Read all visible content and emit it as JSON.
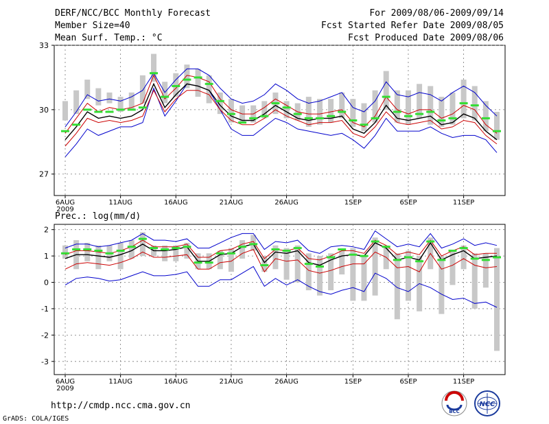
{
  "header": {
    "title": "DERF/NCC/BCC Monthly Forecast",
    "member_size": "Member Size=40",
    "variable": "Mean Surf. Temp.: °C",
    "forecast_period": "For 2009/08/06-2009/09/14",
    "fcst_started": "Fcst Started Refer Date 2009/08/05",
    "fcst_produced": "Fcst Produced Date 2009/08/06"
  },
  "footer": {
    "url": "http://cmdp.ncc.cma.gov.cn",
    "grads": "GrADS: COLA/IGES",
    "logo_bcc": "BCC",
    "logo_ncc": "NCC"
  },
  "colors": {
    "envelope": "#0000cc",
    "spread": "#cc0000",
    "mean": "#000000",
    "bar": "#c8c8c8",
    "climatology": "#33dd33"
  },
  "chart_data": [
    {
      "type": "line",
      "title": "Mean Surf. Temp.: °C",
      "x_tick_labels": [
        "6AUG",
        "11AUG",
        "16AUG",
        "21AUG",
        "26AUG",
        "1SEP",
        "6SEP",
        "11SEP"
      ],
      "x_tick_days": [
        1,
        6,
        11,
        16,
        21,
        27,
        32,
        37
      ],
      "year_label": "2009",
      "days": 40,
      "ylim": [
        26,
        33
      ],
      "y_ticks": [
        27,
        30,
        33
      ],
      "series": [
        {
          "name": "ensemble max",
          "values": [
            27.8,
            28.4,
            29.1,
            28.8,
            29.0,
            29.2,
            29.2,
            29.4,
            31.0,
            29.7,
            30.4,
            31.2,
            31.1,
            30.9,
            30.0,
            29.1,
            28.8,
            28.8,
            29.2,
            29.6,
            29.4,
            29.1,
            29.0,
            28.9,
            28.8,
            28.9,
            28.6,
            28.2,
            28.8,
            29.6,
            29.0,
            29.0,
            29.0,
            29.2,
            28.9,
            28.7,
            28.8,
            28.8,
            28.6,
            28.0
          ]
        },
        {
          "name": "ensemble upper",
          "values": [
            28.9,
            29.6,
            30.3,
            29.9,
            30.1,
            30.0,
            30.1,
            30.3,
            31.6,
            30.5,
            31.0,
            31.6,
            31.5,
            31.3,
            30.5,
            30.0,
            29.8,
            29.8,
            30.1,
            30.5,
            30.2,
            29.9,
            29.8,
            29.8,
            29.9,
            30.0,
            29.4,
            29.2,
            29.7,
            30.6,
            30.0,
            29.8,
            30.0,
            30.0,
            29.6,
            29.8,
            30.2,
            30.0,
            29.3,
            28.9
          ]
        },
        {
          "name": "ensemble mean",
          "values": [
            28.6,
            29.2,
            29.9,
            29.6,
            29.7,
            29.6,
            29.7,
            30.0,
            31.2,
            30.1,
            30.7,
            31.2,
            31.1,
            30.9,
            30.2,
            29.7,
            29.5,
            29.5,
            29.8,
            30.2,
            29.9,
            29.6,
            29.5,
            29.6,
            29.6,
            29.7,
            29.1,
            28.9,
            29.4,
            30.2,
            29.6,
            29.5,
            29.6,
            29.7,
            29.3,
            29.4,
            29.8,
            29.6,
            29.0,
            28.6
          ]
        },
        {
          "name": "ensemble lower",
          "values": [
            28.3,
            28.9,
            29.6,
            29.4,
            29.5,
            29.4,
            29.5,
            29.7,
            30.9,
            29.9,
            30.5,
            30.9,
            30.9,
            30.7,
            30.0,
            29.5,
            29.3,
            29.3,
            29.6,
            30.0,
            29.7,
            29.5,
            29.3,
            29.4,
            29.4,
            29.5,
            28.9,
            28.7,
            29.2,
            29.9,
            29.4,
            29.3,
            29.4,
            29.5,
            29.1,
            29.2,
            29.5,
            29.4,
            28.8,
            28.4
          ]
        },
        {
          "name": "ensemble min",
          "values": [
            29.2,
            29.9,
            30.7,
            30.4,
            30.5,
            30.4,
            30.6,
            30.9,
            31.7,
            30.8,
            31.4,
            31.9,
            31.9,
            31.6,
            31.0,
            30.5,
            30.3,
            30.4,
            30.7,
            31.2,
            30.9,
            30.5,
            30.3,
            30.4,
            30.6,
            30.8,
            30.1,
            29.9,
            30.4,
            31.3,
            30.7,
            30.6,
            30.8,
            30.7,
            30.4,
            30.8,
            31.1,
            30.8,
            30.2,
            29.7
          ]
        }
      ],
      "anomaly_bar_top": [
        30.4,
        30.9,
        31.4,
        31.0,
        30.8,
        30.6,
        30.8,
        31.6,
        32.6,
        31.3,
        31.7,
        32.1,
        31.9,
        31.6,
        30.8,
        30.5,
        30.2,
        30.2,
        30.4,
        30.8,
        30.4,
        30.3,
        30.6,
        30.5,
        30.5,
        30.8,
        30.5,
        30.3,
        30.9,
        31.8,
        30.9,
        30.9,
        31.2,
        31.1,
        30.6,
        30.8,
        31.4,
        31.1,
        30.4,
        29.9
      ],
      "anomaly_bar_bottom": [
        29.5,
        29.8,
        30.5,
        30.2,
        30.3,
        29.9,
        30.0,
        30.3,
        31.3,
        30.3,
        30.6,
        31.0,
        30.6,
        30.3,
        29.8,
        29.4,
        29.4,
        29.4,
        29.6,
        29.8,
        29.6,
        29.5,
        29.2,
        29.3,
        29.4,
        29.6,
        29.2,
        29.0,
        29.4,
        30.0,
        29.4,
        29.3,
        29.6,
        29.3,
        29.2,
        29.3,
        29.6,
        29.5,
        29.0,
        28.6
      ],
      "climatology_mark": [
        29.0,
        29.3,
        30.0,
        29.9,
        29.9,
        30.0,
        30.0,
        30.1,
        31.7,
        30.6,
        31.1,
        31.4,
        31.5,
        31.2,
        30.4,
        29.8,
        29.4,
        29.6,
        29.7,
        30.3,
        30.1,
        29.8,
        29.6,
        29.6,
        29.7,
        29.9,
        29.5,
        29.3,
        29.6,
        30.6,
        29.9,
        29.7,
        29.8,
        29.9,
        29.5,
        29.6,
        30.3,
        30.2,
        29.6,
        29.0
      ]
    },
    {
      "type": "line",
      "title": "Prec.: log(mm/d)",
      "x_tick_labels": [
        "6AUG",
        "11AUG",
        "16AUG",
        "21AUG",
        "26AUG",
        "1SEP",
        "6SEP",
        "11SEP"
      ],
      "x_tick_days": [
        1,
        6,
        11,
        16,
        21,
        27,
        32,
        37
      ],
      "year_label": "2009",
      "days": 40,
      "ylim": [
        -3.5,
        2.2
      ],
      "y_ticks": [
        -3,
        -2,
        -1,
        0,
        1,
        2
      ],
      "series": [
        {
          "name": "ensemble min",
          "values": [
            -0.1,
            0.15,
            0.2,
            0.15,
            0.05,
            0.1,
            0.25,
            0.4,
            0.25,
            0.25,
            0.3,
            0.4,
            -0.15,
            -0.15,
            0.1,
            0.1,
            0.35,
            0.6,
            -0.15,
            0.15,
            -0.1,
            0.1,
            -0.15,
            -0.35,
            -0.45,
            -0.3,
            -0.2,
            -0.35,
            0.35,
            0.15,
            -0.2,
            -0.35,
            -0.05,
            -0.2,
            -0.45,
            -0.65,
            -0.6,
            -0.8,
            -0.75,
            -0.95
          ]
        },
        {
          "name": "ensemble lower",
          "values": [
            0.5,
            0.7,
            0.75,
            0.7,
            0.65,
            0.75,
            0.9,
            1.15,
            0.95,
            0.95,
            1.0,
            1.05,
            0.5,
            0.5,
            0.75,
            0.8,
            1.1,
            1.25,
            0.4,
            0.9,
            0.8,
            0.85,
            0.45,
            0.35,
            0.45,
            0.6,
            0.7,
            0.7,
            1.15,
            0.95,
            0.55,
            0.6,
            0.4,
            1.1,
            0.5,
            0.65,
            0.9,
            0.65,
            0.55,
            0.6
          ]
        },
        {
          "name": "ensemble mean",
          "values": [
            0.9,
            1.05,
            1.05,
            1.0,
            0.95,
            1.05,
            1.2,
            1.45,
            1.2,
            1.2,
            1.25,
            1.35,
            0.8,
            0.8,
            1.05,
            1.1,
            1.35,
            1.45,
            0.75,
            1.15,
            1.1,
            1.2,
            0.75,
            0.65,
            0.85,
            1.0,
            1.05,
            1.0,
            1.5,
            1.3,
            0.85,
            0.95,
            0.85,
            1.5,
            0.85,
            1.05,
            1.2,
            0.9,
            0.95,
            1.0
          ]
        },
        {
          "name": "ensemble upper",
          "values": [
            1.05,
            1.2,
            1.2,
            1.15,
            1.1,
            1.2,
            1.35,
            1.6,
            1.35,
            1.35,
            1.35,
            1.45,
            0.95,
            0.95,
            1.2,
            1.25,
            1.45,
            1.55,
            0.9,
            1.25,
            1.2,
            1.3,
            0.9,
            0.85,
            1.0,
            1.2,
            1.2,
            1.1,
            1.6,
            1.4,
            1.05,
            1.15,
            1.05,
            1.6,
            1.0,
            1.2,
            1.35,
            1.05,
            1.1,
            1.1
          ]
        },
        {
          "name": "ensemble max",
          "values": [
            1.3,
            1.45,
            1.45,
            1.35,
            1.4,
            1.5,
            1.6,
            1.85,
            1.6,
            1.6,
            1.55,
            1.65,
            1.3,
            1.3,
            1.5,
            1.7,
            1.85,
            1.85,
            1.25,
            1.55,
            1.5,
            1.6,
            1.2,
            1.1,
            1.35,
            1.4,
            1.35,
            1.25,
            1.95,
            1.65,
            1.35,
            1.45,
            1.35,
            1.85,
            1.3,
            1.45,
            1.65,
            1.4,
            1.5,
            1.4
          ]
        }
      ],
      "anomaly_bar_top": [
        1.4,
        1.6,
        1.5,
        1.4,
        1.4,
        1.5,
        1.6,
        1.9,
        1.4,
        1.4,
        1.4,
        1.5,
        1.1,
        1.1,
        1.2,
        1.3,
        1.6,
        1.8,
        1.0,
        1.4,
        1.3,
        1.4,
        1.1,
        1.0,
        1.1,
        1.2,
        1.3,
        1.0,
        1.7,
        1.4,
        1.1,
        1.2,
        1.0,
        1.7,
        1.0,
        1.2,
        1.4,
        1.1,
        1.1,
        1.3
      ],
      "anomaly_bar_bottom": [
        0.9,
        0.5,
        0.8,
        0.5,
        0.8,
        0.5,
        0.9,
        1.0,
        1.0,
        0.8,
        0.8,
        0.9,
        0.5,
        0.5,
        0.5,
        0.4,
        0.9,
        1.2,
        0.4,
        0.5,
        0.1,
        0.0,
        -0.3,
        -0.5,
        -0.3,
        0.3,
        -0.7,
        -0.7,
        -0.5,
        0.5,
        -1.4,
        -0.7,
        -1.1,
        0.5,
        -1.2,
        -0.1,
        0.5,
        -1.0,
        -0.2,
        -2.6
      ],
      "climatology_mark": [
        1.1,
        1.25,
        1.25,
        1.2,
        1.1,
        1.2,
        1.35,
        1.65,
        1.3,
        1.25,
        1.3,
        1.35,
        0.75,
        0.75,
        1.1,
        1.1,
        1.35,
        1.45,
        0.65,
        1.25,
        1.2,
        1.3,
        0.7,
        0.6,
        0.95,
        1.25,
        1.05,
        1.0,
        1.55,
        1.35,
        0.85,
        0.95,
        0.8,
        1.55,
        0.85,
        1.2,
        1.3,
        0.9,
        0.85,
        0.95
      ]
    }
  ]
}
